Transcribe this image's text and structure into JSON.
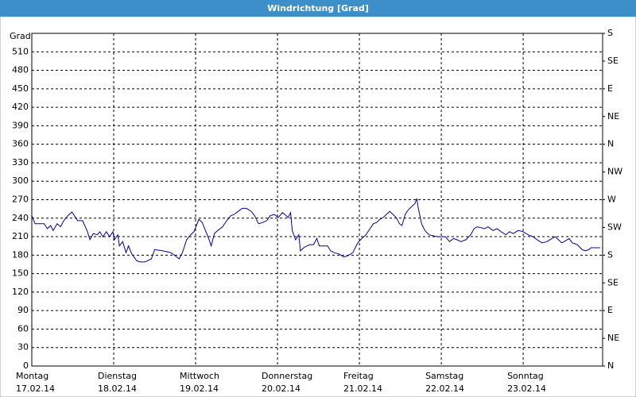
{
  "chart_data": {
    "type": "line",
    "title": "Windrichtung [Grad]",
    "y_label": "Grad",
    "xlim": [
      0,
      6.97
    ],
    "xticks": [
      {
        "value": 0,
        "label": "Montag",
        "date": "17.02.14"
      },
      {
        "value": 1,
        "label": "Dienstag",
        "date": "18.02.14"
      },
      {
        "value": 2,
        "label": "Mittwoch",
        "date": "19.02.14"
      },
      {
        "value": 3,
        "label": "Donnerstag",
        "date": "20.02.14"
      },
      {
        "value": 4,
        "label": "Freitag",
        "date": "21.02.14"
      },
      {
        "value": 5,
        "label": "Samstag",
        "date": "22.02.14"
      },
      {
        "value": 6,
        "label": "Sonntag",
        "date": "23.02.14"
      }
    ],
    "ylim": [
      0,
      540
    ],
    "yticks": [
      0,
      30,
      60,
      90,
      120,
      150,
      180,
      210,
      240,
      270,
      300,
      330,
      360,
      390,
      420,
      450,
      480,
      510
    ],
    "y2lim": [
      0,
      540
    ],
    "y2ticks": [
      {
        "value": 0,
        "label": "N"
      },
      {
        "value": 45,
        "label": "NE"
      },
      {
        "value": 90,
        "label": "E"
      },
      {
        "value": 135,
        "label": "SE"
      },
      {
        "value": 180,
        "label": "S"
      },
      {
        "value": 225,
        "label": "SW"
      },
      {
        "value": 270,
        "label": "W"
      },
      {
        "value": 315,
        "label": "NW"
      },
      {
        "value": 360,
        "label": "N"
      },
      {
        "value": 405,
        "label": "NE"
      },
      {
        "value": 450,
        "label": "E"
      },
      {
        "value": 495,
        "label": "SE"
      },
      {
        "value": 540,
        "label": "S"
      }
    ],
    "grid": true,
    "series": [
      {
        "name": "Windrichtung",
        "color": "#0000a0",
        "x": [
          0.0,
          0.04,
          0.15,
          0.19,
          0.23,
          0.26,
          0.31,
          0.35,
          0.39,
          0.44,
          0.49,
          0.52,
          0.56,
          0.62,
          0.68,
          0.71,
          0.75,
          0.8,
          0.83,
          0.87,
          0.91,
          0.95,
          0.99,
          1.01,
          1.05,
          1.07,
          1.11,
          1.15,
          1.18,
          1.22,
          1.28,
          1.32,
          1.38,
          1.46,
          1.5,
          1.6,
          1.7,
          1.75,
          1.8,
          1.84,
          1.89,
          1.94,
          1.98,
          2.04,
          2.08,
          2.12,
          2.16,
          2.19,
          2.23,
          2.27,
          2.33,
          2.38,
          2.43,
          2.47,
          2.52,
          2.57,
          2.62,
          2.68,
          2.72,
          2.77,
          2.82,
          2.87,
          2.91,
          2.96,
          3.01,
          3.06,
          3.09,
          3.13,
          3.16,
          3.18,
          3.22,
          3.26,
          3.28,
          3.32,
          3.36,
          3.4,
          3.44,
          3.48,
          3.51,
          3.57,
          3.61,
          3.65,
          3.69,
          3.75,
          3.81,
          3.86,
          3.92,
          3.98,
          4.03,
          4.08,
          4.13,
          4.17,
          4.21,
          4.25,
          4.29,
          4.33,
          4.37,
          4.41,
          4.45,
          4.49,
          4.52,
          4.56,
          4.6,
          4.64,
          4.68,
          4.7,
          4.72,
          4.76,
          4.8,
          4.85,
          4.95,
          5.05,
          5.1,
          5.15,
          5.19,
          5.24,
          5.3,
          5.36,
          5.4,
          5.44,
          5.53,
          5.57,
          5.63,
          5.68,
          5.73,
          5.79,
          5.83,
          5.88,
          5.94,
          6.0,
          6.06,
          6.12,
          6.17,
          6.23,
          6.29,
          6.35,
          6.39,
          6.43,
          6.47,
          6.5,
          6.56,
          6.6,
          6.66,
          6.72,
          6.76,
          6.8,
          6.83,
          6.89,
          6.94
        ],
        "values": [
          244,
          231,
          231,
          223,
          228,
          220,
          231,
          226,
          236,
          244,
          250,
          244,
          236,
          236,
          218,
          205,
          215,
          213,
          218,
          210,
          218,
          210,
          218,
          205,
          213,
          195,
          202,
          184,
          195,
          182,
          171,
          169,
          169,
          174,
          189,
          187,
          184,
          179,
          174,
          184,
          205,
          213,
          218,
          238,
          233,
          220,
          207,
          195,
          215,
          220,
          226,
          236,
          244,
          246,
          251,
          256,
          256,
          251,
          244,
          231,
          233,
          236,
          244,
          246,
          241,
          249,
          246,
          241,
          249,
          220,
          205,
          213,
          187,
          192,
          195,
          197,
          197,
          207,
          195,
          195,
          195,
          187,
          184,
          182,
          177,
          179,
          184,
          200,
          207,
          213,
          223,
          231,
          233,
          238,
          241,
          246,
          251,
          246,
          241,
          231,
          228,
          246,
          254,
          259,
          264,
          272,
          256,
          231,
          220,
          213,
          210,
          210,
          202,
          207,
          205,
          202,
          205,
          213,
          223,
          226,
          223,
          226,
          220,
          223,
          218,
          213,
          218,
          215,
          220,
          218,
          213,
          210,
          205,
          200,
          202,
          207,
          210,
          205,
          200,
          202,
          207,
          200,
          197,
          189,
          187,
          189,
          192,
          192,
          192
        ]
      }
    ]
  }
}
